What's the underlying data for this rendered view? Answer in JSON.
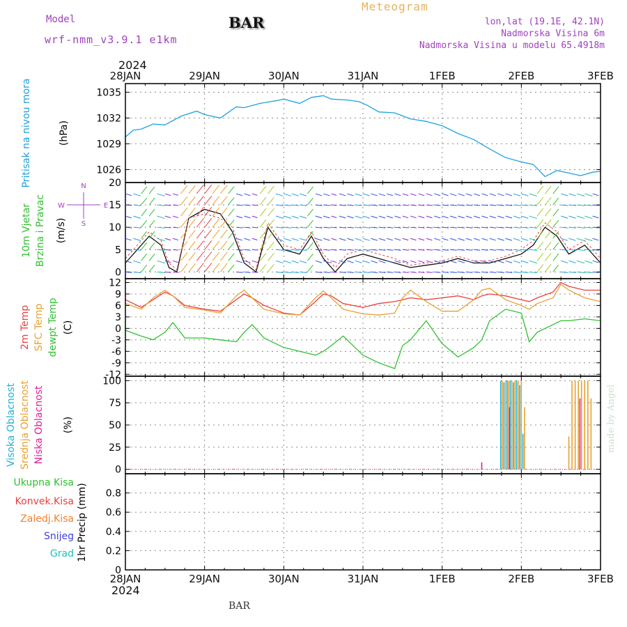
{
  "header": {
    "model_label": "Model",
    "model_name": "wrf-nmm_v3.9.1 e1km",
    "station": "BAR",
    "meteogram_label": "Meteogram",
    "lonlat": "lon,lat (19.1E, 42.1N)",
    "elevation": "Nadmorska Visina 6m",
    "model_elevation": "Nadmorska Visina u modelu 65.4918m"
  },
  "footer": {
    "station": "BAR",
    "credit": "made by Angel"
  },
  "colors": {
    "pressure": "#1ea0e0",
    "temp2m": "#e84040",
    "sfc_temp": "#e8a030",
    "dewpt": "#30c030",
    "cloud_high": "#20b0d8",
    "cloud_mid": "#e8a030",
    "cloud_low": "#e02090",
    "wind_speed_line": "#111111"
  },
  "chart_data": [
    {
      "type": "line",
      "name": "pressure",
      "ylabel": [
        "Pritisak na nivou mora",
        "(hPa)"
      ],
      "x_ticks": [
        "28JAN",
        "29JAN",
        "30JAN",
        "31JAN",
        "1FEB",
        "2FEB",
        "3FEB"
      ],
      "x_year": "2024",
      "ylim": [
        1024.5,
        1036
      ],
      "yticks": [
        1026,
        1029,
        1032,
        1035
      ],
      "grid": true,
      "x": [
        0,
        0.1,
        0.2,
        0.35,
        0.5,
        0.7,
        0.9,
        1.0,
        1.2,
        1.4,
        1.5,
        1.7,
        1.9,
        2.0,
        2.2,
        2.35,
        2.5,
        2.6,
        2.8,
        2.95,
        3.05,
        3.2,
        3.4,
        3.6,
        3.8,
        4.0,
        4.2,
        4.4,
        4.6,
        4.8,
        5.0,
        5.15,
        5.3,
        5.45,
        5.6,
        5.75,
        5.9,
        6.0
      ],
      "series": [
        {
          "values": [
            1029.8,
            1030.6,
            1030.7,
            1031.3,
            1031.2,
            1032.2,
            1032.8,
            1032.4,
            1032.0,
            1033.3,
            1033.2,
            1033.7,
            1034.0,
            1034.2,
            1033.7,
            1034.4,
            1034.6,
            1034.2,
            1034.1,
            1033.9,
            1033.5,
            1032.7,
            1032.6,
            1031.9,
            1031.6,
            1031.1,
            1030.2,
            1029.5,
            1028.4,
            1027.4,
            1026.9,
            1026.6,
            1025.2,
            1025.9,
            1025.6,
            1025.3,
            1025.7,
            1025.8
          ]
        }
      ]
    },
    {
      "type": "line",
      "name": "wind",
      "ylabel": [
        "10m Vjetar",
        "Brzina i Pravac",
        "(m/s)"
      ],
      "compass": [
        "N",
        "E",
        "W",
        "S"
      ],
      "ylim": [
        -1.5,
        20
      ],
      "yticks": [
        0,
        5,
        10,
        15,
        20
      ],
      "grid": true,
      "x": [
        0,
        0.15,
        0.3,
        0.45,
        0.55,
        0.65,
        0.8,
        1.0,
        1.2,
        1.35,
        1.5,
        1.65,
        1.8,
        2.0,
        2.2,
        2.35,
        2.5,
        2.65,
        2.8,
        3.0,
        3.2,
        3.4,
        3.6,
        3.8,
        4.0,
        4.2,
        4.4,
        4.6,
        4.8,
        5.0,
        5.15,
        5.3,
        5.45,
        5.6,
        5.8,
        6.0
      ],
      "series": [
        {
          "values": [
            2,
            5,
            8,
            6,
            1,
            0,
            12,
            14,
            13,
            9,
            2,
            0,
            10,
            5,
            4,
            8,
            3,
            0,
            3,
            4,
            3,
            2,
            1,
            1.5,
            2,
            3,
            2,
            2,
            3,
            4,
            6,
            10,
            8,
            4,
            6,
            2
          ]
        },
        {
          "values": [
            3,
            6,
            9,
            7,
            2,
            0.5,
            12,
            13,
            12,
            10,
            3,
            0.5,
            11,
            6,
            5,
            9,
            4,
            1,
            4,
            5,
            4,
            3,
            1.5,
            2,
            2.5,
            3.5,
            2.5,
            2.5,
            3.5,
            5,
            7,
            11,
            9,
            5,
            7,
            3
          ]
        }
      ]
    },
    {
      "type": "line",
      "name": "temperature",
      "ylabel": [
        "2m Temp",
        "SFC Temp",
        "dewpt Temp",
        "(C)"
      ],
      "ylim": [
        -12.5,
        13
      ],
      "yticks": [
        -12,
        -9,
        -6,
        -3,
        0,
        3,
        6,
        9,
        12
      ],
      "grid": true,
      "x": [
        0,
        0.2,
        0.35,
        0.5,
        0.6,
        0.75,
        1.0,
        1.2,
        1.4,
        1.5,
        1.6,
        1.75,
        2.0,
        2.2,
        2.4,
        2.5,
        2.6,
        2.75,
        3.0,
        3.2,
        3.4,
        3.5,
        3.6,
        3.8,
        4.0,
        4.2,
        4.4,
        4.5,
        4.6,
        4.8,
        5.0,
        5.1,
        5.2,
        5.4,
        5.5,
        5.6,
        5.8,
        6.0
      ],
      "series": [
        {
          "name": "2m Temp",
          "values": [
            7.5,
            5.5,
            7.5,
            9.5,
            8.5,
            6.0,
            5.0,
            4.5,
            7.5,
            9.0,
            8.0,
            6.0,
            4.0,
            3.5,
            7.0,
            9.0,
            8.5,
            6.5,
            5.5,
            6.5,
            7.0,
            7.5,
            8.0,
            7.5,
            8.0,
            8.5,
            7.5,
            8.5,
            9.0,
            8.5,
            7.5,
            7.0,
            8.0,
            9.5,
            12.0,
            11.0,
            10.0,
            10.0
          ]
        },
        {
          "name": "SFC Temp",
          "values": [
            6.5,
            5.0,
            8.0,
            10.0,
            8.5,
            5.5,
            4.8,
            4.0,
            8.5,
            10.0,
            8.0,
            5.0,
            3.8,
            3.5,
            8.0,
            9.8,
            8.0,
            5.0,
            3.8,
            3.5,
            4.0,
            8.0,
            10.0,
            7.0,
            4.5,
            4.5,
            7.5,
            10.0,
            10.5,
            7.5,
            6.0,
            5.0,
            6.5,
            8.0,
            11.5,
            10.0,
            8.0,
            7.0
          ]
        },
        {
          "name": "dewpt Temp",
          "values": [
            -0.5,
            -2.0,
            -3.0,
            -1.0,
            1.5,
            -2.5,
            -2.5,
            -3.0,
            -3.5,
            -1.0,
            1.0,
            -2.5,
            -5.0,
            -6.0,
            -7.0,
            -6.0,
            -4.5,
            -2.0,
            -7.0,
            -9.0,
            -10.5,
            -4.5,
            -3.0,
            2.0,
            -4.0,
            -7.5,
            -5.0,
            -3.0,
            2.0,
            5.0,
            4.0,
            -3.5,
            -1.0,
            1.0,
            2.0,
            2.0,
            2.5,
            2.0
          ]
        }
      ]
    },
    {
      "type": "bar",
      "name": "clouds",
      "ylabel": [
        "Visoka Oblacnost",
        "Srednja Oblacnost",
        "Niska Oblacnost",
        "(%)"
      ],
      "ylim": [
        -5,
        105
      ],
      "yticks": [
        0,
        25,
        50,
        75,
        100
      ],
      "grid": true,
      "series": [
        {
          "name": "Visoka Oblacnost",
          "x": [
            4.74,
            4.78,
            4.82,
            4.86,
            4.9,
            4.94,
            4.98,
            5.02
          ],
          "values": [
            100,
            98,
            100,
            100,
            98,
            100,
            95,
            40
          ]
        },
        {
          "name": "Srednja Oblacnost",
          "x": [
            4.76,
            4.8,
            4.84,
            4.88,
            4.92,
            4.96,
            5.0,
            5.04,
            5.6,
            5.64,
            5.68,
            5.72,
            5.76,
            5.8,
            5.84,
            5.88
          ],
          "values": [
            100,
            100,
            100,
            100,
            100,
            100,
            100,
            70,
            37,
            100,
            100,
            100,
            100,
            100,
            100,
            80
          ]
        },
        {
          "name": "Niska Oblacnost",
          "x": [
            4.5,
            4.85,
            5.74
          ],
          "values": [
            8,
            70,
            80
          ]
        }
      ]
    },
    {
      "type": "bar",
      "name": "precipitation",
      "legend": [
        "Ukupna Kisa",
        "Konvek.Kisa",
        "Zaledj.Kisa",
        "Snijeg",
        "Grad"
      ],
      "ylabel": [
        "1hr Precip (mm)"
      ],
      "ylim": [
        0,
        1.0
      ],
      "yticks": [
        0,
        0.2,
        0.4,
        0.6,
        0.8
      ],
      "grid": true,
      "series": []
    }
  ]
}
